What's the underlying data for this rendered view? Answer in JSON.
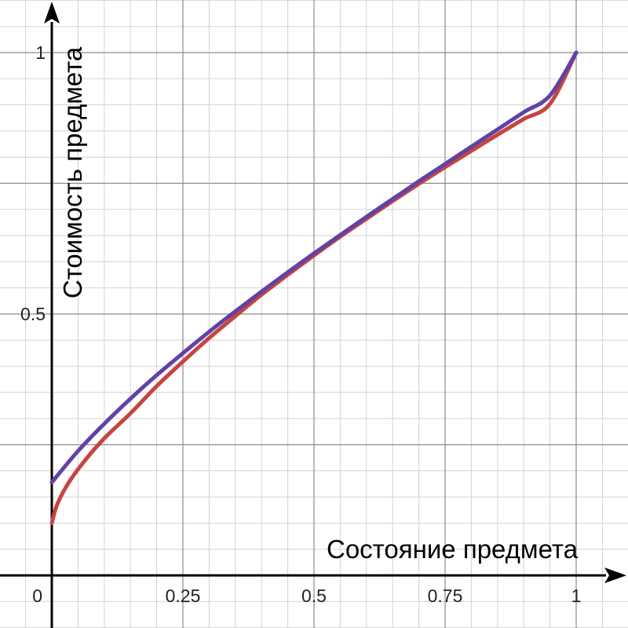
{
  "chart_data": {
    "type": "line",
    "title": "",
    "xlabel": "Состояние предмета",
    "ylabel": "Стоимость предмета",
    "xlim": [
      -0.1,
      1.1
    ],
    "ylim": [
      -0.1,
      1.1
    ],
    "grid": true,
    "minor_grid": true,
    "x_ticks": [
      {
        "value": 0.25,
        "label": "0.25"
      },
      {
        "value": 0.5,
        "label": "0.5"
      },
      {
        "value": 0.75,
        "label": "0.75"
      },
      {
        "value": 1,
        "label": "1"
      }
    ],
    "y_ticks": [
      {
        "value": 0.5,
        "label": "0.5"
      },
      {
        "value": 1,
        "label": "1"
      }
    ],
    "origin_label": "0",
    "series": [
      {
        "color": "#c74440",
        "x": [
          0,
          0.01,
          0.03,
          0.06,
          0.1,
          0.15,
          0.2,
          0.25,
          0.3,
          0.35,
          0.4,
          0.45,
          0.5,
          0.55,
          0.6,
          0.65,
          0.7,
          0.75,
          0.8,
          0.85,
          0.9,
          0.95,
          1
        ],
        "y": [
          0.1,
          0.135,
          0.174,
          0.216,
          0.262,
          0.31,
          0.362,
          0.409,
          0.454,
          0.496,
          0.537,
          0.575,
          0.612,
          0.648,
          0.682,
          0.716,
          0.749,
          0.781,
          0.812,
          0.843,
          0.873,
          0.902,
          1.0
        ]
      },
      {
        "color": "#6042a6",
        "x": [
          0,
          0.05,
          0.1,
          0.15,
          0.2,
          0.25,
          0.3,
          0.35,
          0.4,
          0.45,
          0.5,
          0.55,
          0.6,
          0.65,
          0.7,
          0.75,
          0.8,
          0.85,
          0.9,
          0.95,
          1
        ],
        "y": [
          0.178,
          0.238,
          0.29,
          0.338,
          0.383,
          0.425,
          0.466,
          0.505,
          0.543,
          0.58,
          0.616,
          0.651,
          0.686,
          0.72,
          0.754,
          0.787,
          0.82,
          0.853,
          0.886,
          0.918,
          1.0
        ]
      }
    ]
  }
}
